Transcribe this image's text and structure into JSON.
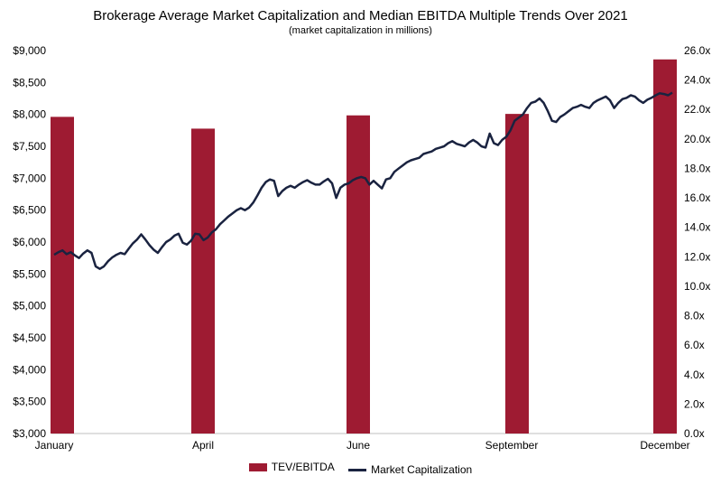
{
  "colors": {
    "bar": "#9e1b32",
    "line": "#1a2340"
  },
  "chart_data": {
    "type": "bar+line",
    "title": "Brokerage Average Market Capitalization and Median EBITDA Multiple Trends Over 2021",
    "subtitle": "(market capitalization in millions)",
    "x_labels": [
      "January",
      "April",
      "June",
      "September",
      "December"
    ],
    "y_left": {
      "ticks": [
        "$3,000",
        "$3,500",
        "$4,000",
        "$4,500",
        "$5,000",
        "$5,500",
        "$6,000",
        "$6,500",
        "$7,000",
        "$7,500",
        "$8,000",
        "$8,500",
        "$9,000"
      ],
      "range": [
        3000,
        9000
      ]
    },
    "y_right": {
      "ticks": [
        "0.0x",
        "2.0x",
        "4.0x",
        "6.0x",
        "8.0x",
        "10.0x",
        "12.0x",
        "14.0x",
        "16.0x",
        "18.0x",
        "20.0x",
        "22.0x",
        "24.0x",
        "26.0x"
      ],
      "range": [
        0,
        26
      ]
    },
    "legend_position": "bottom",
    "series": [
      {
        "name": "TEV/EBITDA",
        "type": "bar",
        "axis": "right",
        "points": [
          {
            "x": 0.0,
            "value": 21.5
          },
          {
            "x": 0.2,
            "value": 20.7
          },
          {
            "x": 0.4,
            "value": 21.6
          },
          {
            "x": 0.6,
            "value": 21.7
          },
          {
            "x": 0.8,
            "value": 25.4
          }
        ]
      },
      {
        "name": "Market Capitalization",
        "type": "line",
        "axis": "left",
        "values": [
          5800,
          5840,
          5870,
          5810,
          5840,
          5790,
          5750,
          5820,
          5870,
          5830,
          5620,
          5580,
          5620,
          5700,
          5760,
          5800,
          5830,
          5810,
          5900,
          5980,
          6040,
          6120,
          6040,
          5950,
          5880,
          5830,
          5920,
          6000,
          6040,
          6100,
          6130,
          5990,
          5960,
          6020,
          6130,
          6120,
          6030,
          6070,
          6150,
          6200,
          6280,
          6340,
          6400,
          6450,
          6500,
          6530,
          6500,
          6540,
          6620,
          6730,
          6850,
          6940,
          6980,
          6960,
          6720,
          6800,
          6850,
          6880,
          6850,
          6900,
          6940,
          6970,
          6930,
          6900,
          6900,
          6950,
          6990,
          6920,
          6690,
          6850,
          6900,
          6920,
          6970,
          7000,
          7020,
          7000,
          6900,
          6960,
          6900,
          6840,
          6980,
          7000,
          7100,
          7150,
          7200,
          7250,
          7280,
          7300,
          7320,
          7380,
          7400,
          7420,
          7460,
          7480,
          7500,
          7550,
          7580,
          7540,
          7520,
          7500,
          7560,
          7600,
          7560,
          7500,
          7480,
          7700,
          7550,
          7520,
          7600,
          7650,
          7750,
          7900,
          7950,
          8000,
          8100,
          8180,
          8200,
          8250,
          8180,
          8050,
          7900,
          7880,
          7960,
          8000,
          8050,
          8100,
          8120,
          8150,
          8120,
          8100,
          8180,
          8220,
          8250,
          8280,
          8220,
          8100,
          8180,
          8240,
          8260,
          8300,
          8280,
          8220,
          8180,
          8230,
          8260,
          8300,
          8330,
          8320,
          8300,
          8340
        ]
      }
    ]
  },
  "legend": {
    "bar_label": "TEV/EBITDA",
    "line_label": "Market Capitalization"
  }
}
